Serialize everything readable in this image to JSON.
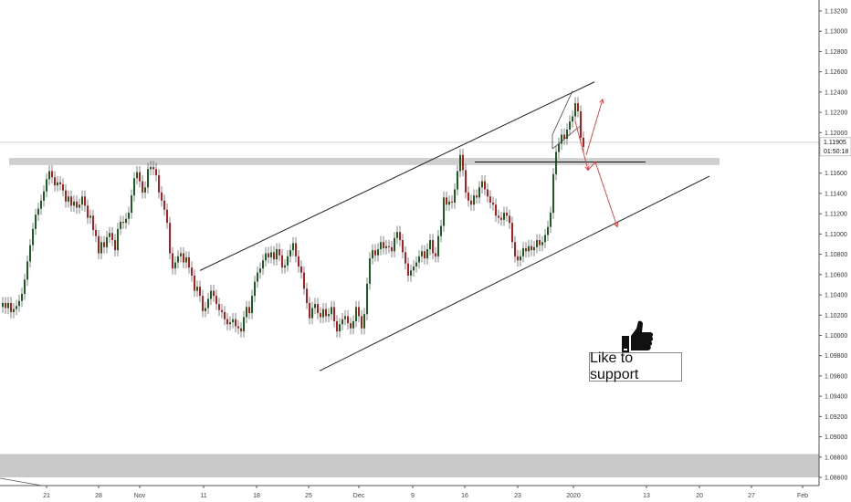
{
  "chart_data": {
    "type": "candlestick",
    "symbol_pair": "",
    "title": "",
    "xlabel": "",
    "ylabel": "",
    "ylim": [
      1.085,
      1.133
    ],
    "y_ticks": [
      "1.13200",
      "1.13000",
      "1.12800",
      "1.12600",
      "1.12400",
      "1.12200",
      "1.12000",
      "1.11800",
      "1.11600",
      "1.11400",
      "1.11200",
      "1.11000",
      "1.10800",
      "1.10600",
      "1.10400",
      "1.10200",
      "1.10000",
      "1.09800",
      "1.09600",
      "1.09400",
      "1.09200",
      "1.09000",
      "1.08800",
      "1.08600"
    ],
    "x_ticks": [
      "21",
      "28",
      "Nov",
      "11",
      "18",
      "25",
      "Dec",
      "9",
      "16",
      "23",
      "2020",
      "13",
      "20",
      "27",
      "Feb"
    ],
    "last_price": "1.11905",
    "countdown": "01:50:18",
    "colors": {
      "up": "#1b5e20",
      "down": "#b71c1c",
      "zone": "#cfcfcf",
      "trendline": "#222222",
      "projection": "#e53935"
    },
    "resistance_zone": {
      "y_top": 1.1175,
      "y_bottom": 1.1168
    },
    "bottom_zone": {
      "y_top": 1.0883,
      "y_bottom": 1.086
    },
    "channel_upper": {
      "x1": 219,
      "y1": 1.1064,
      "x2": 651,
      "y2": 1.125
    },
    "channel_lower": {
      "x1": 350,
      "y1": 1.0965,
      "x2": 777,
      "y2": 1.1157
    },
    "horizontal_line": {
      "x1": 520,
      "x2": 707,
      "y": 1.1171
    },
    "wedge_lines": [
      {
        "x1": 605,
        "y1": 1.1198,
        "x2": 627,
        "y2": 1.1241
      },
      {
        "x1": 605,
        "y1": 1.1184,
        "x2": 636,
        "y2": 1.1207
      }
    ],
    "projection_path": [
      {
        "x": 630,
        "y": 1.1211
      },
      {
        "x": 644,
        "y": 1.1163
      },
      {
        "x": 652,
        "y": 1.1171
      },
      {
        "x": 676,
        "y": 1.1107
      }
    ],
    "projection_up": {
      "x1": 642,
      "y1": 1.1178,
      "x2": 660,
      "y2": 1.1233
    },
    "candles": [
      [
        0,
        1.1032
      ],
      [
        3,
        1.1027
      ],
      [
        6,
        1.1032
      ],
      [
        9,
        1.1023
      ],
      [
        12,
        1.1026
      ],
      [
        15,
        1.1029
      ],
      [
        18,
        1.1034
      ],
      [
        21,
        1.1041
      ],
      [
        24,
        1.1055
      ],
      [
        27,
        1.1073
      ],
      [
        30,
        1.1089
      ],
      [
        33,
        1.1105
      ],
      [
        36,
        1.1119
      ],
      [
        39,
        1.1125
      ],
      [
        42,
        1.1133
      ],
      [
        45,
        1.1142
      ],
      [
        48,
        1.1154
      ],
      [
        51,
        1.1162
      ],
      [
        54,
        1.1156
      ],
      [
        57,
        1.1148
      ],
      [
        60,
        1.1151
      ],
      [
        63,
        1.1149
      ],
      [
        66,
        1.1143
      ],
      [
        69,
        1.1132
      ],
      [
        72,
        1.1137
      ],
      [
        75,
        1.1128
      ],
      [
        78,
        1.1132
      ],
      [
        81,
        1.1126
      ],
      [
        84,
        1.1129
      ],
      [
        87,
        1.1137
      ],
      [
        90,
        1.1128
      ],
      [
        93,
        1.1116
      ],
      [
        96,
        1.1118
      ],
      [
        99,
        1.1104
      ],
      [
        102,
        1.1098
      ],
      [
        105,
        1.1081
      ],
      [
        108,
        1.1092
      ],
      [
        111,
        1.1087
      ],
      [
        114,
        1.1097
      ],
      [
        117,
        1.1101
      ],
      [
        120,
        1.1094
      ],
      [
        123,
        1.1084
      ],
      [
        126,
        1.1105
      ],
      [
        129,
        1.1112
      ],
      [
        132,
        1.1111
      ],
      [
        135,
        1.1115
      ],
      [
        138,
        1.1121
      ],
      [
        141,
        1.1138
      ],
      [
        144,
        1.1155
      ],
      [
        147,
        1.1161
      ],
      [
        150,
        1.1152
      ],
      [
        153,
        1.1141
      ],
      [
        156,
        1.1146
      ],
      [
        159,
        1.1164
      ],
      [
        162,
        1.1166
      ],
      [
        165,
        1.1164
      ],
      [
        168,
        1.1158
      ],
      [
        171,
        1.1141
      ],
      [
        174,
        1.1133
      ],
      [
        177,
        1.1124
      ],
      [
        180,
        1.1111
      ],
      [
        183,
        1.1081
      ],
      [
        186,
        1.1066
      ],
      [
        189,
        1.1072
      ],
      [
        192,
        1.1078
      ],
      [
        195,
        1.1081
      ],
      [
        198,
        1.1072
      ],
      [
        201,
        1.1077
      ],
      [
        204,
        1.1067
      ],
      [
        207,
        1.1059
      ],
      [
        210,
        1.1044
      ],
      [
        213,
        1.1048
      ],
      [
        216,
        1.1039
      ],
      [
        219,
        1.1024
      ],
      [
        222,
        1.1027
      ],
      [
        225,
        1.1036
      ],
      [
        228,
        1.1044
      ],
      [
        231,
        1.1039
      ],
      [
        234,
        1.1031
      ],
      [
        237,
        1.1025
      ],
      [
        240,
        1.1023
      ],
      [
        243,
        1.1016
      ],
      [
        246,
        1.1011
      ],
      [
        249,
        1.1013
      ],
      [
        252,
        1.1016
      ],
      [
        255,
        1.1009
      ],
      [
        258,
        1.1007
      ],
      [
        261,
        1.1004
      ],
      [
        264,
        1.1018
      ],
      [
        267,
        1.1028
      ],
      [
        270,
        1.1022
      ],
      [
        273,
        1.1039
      ],
      [
        276,
        1.1053
      ],
      [
        279,
        1.1062
      ],
      [
        282,
        1.1066
      ],
      [
        285,
        1.1074
      ],
      [
        288,
        1.1081
      ],
      [
        291,
        1.1077
      ],
      [
        294,
        1.1082
      ],
      [
        297,
        1.1075
      ],
      [
        300,
        1.1085
      ],
      [
        303,
        1.1079
      ],
      [
        306,
        1.1067
      ],
      [
        309,
        1.1069
      ],
      [
        312,
        1.1078
      ],
      [
        315,
        1.1084
      ],
      [
        318,
        1.1091
      ],
      [
        321,
        1.1078
      ],
      [
        324,
        1.1068
      ],
      [
        327,
        1.1062
      ],
      [
        330,
        1.1046
      ],
      [
        333,
        1.1032
      ],
      [
        336,
        1.1017
      ],
      [
        339,
        1.1027
      ],
      [
        342,
        1.1031
      ],
      [
        345,
        1.1022
      ],
      [
        348,
        1.1018
      ],
      [
        351,
        1.1026
      ],
      [
        354,
        1.1019
      ],
      [
        357,
        1.1021
      ],
      [
        360,
        1.1028
      ],
      [
        363,
        1.1014
      ],
      [
        366,
        1.1004
      ],
      [
        369,
        1.1011
      ],
      [
        372,
        1.1016
      ],
      [
        375,
        1.1019
      ],
      [
        378,
        1.1012
      ],
      [
        381,
        1.1007
      ],
      [
        384,
        1.1014
      ],
      [
        387,
        1.1028
      ],
      [
        390,
        1.1019
      ],
      [
        393,
        1.1007
      ],
      [
        396,
        1.1021
      ],
      [
        399,
        1.1051
      ],
      [
        402,
        1.1076
      ],
      [
        405,
        1.1084
      ],
      [
        408,
        1.1079
      ],
      [
        411,
        1.1085
      ],
      [
        414,
        1.1092
      ],
      [
        417,
        1.1086
      ],
      [
        420,
        1.1088
      ],
      [
        423,
        1.1087
      ],
      [
        426,
        1.1083
      ],
      [
        429,
        1.1096
      ],
      [
        432,
        1.1102
      ],
      [
        435,
        1.1094
      ],
      [
        438,
        1.1082
      ],
      [
        441,
        1.1071
      ],
      [
        444,
        1.1059
      ],
      [
        447,
        1.1064
      ],
      [
        450,
        1.1068
      ],
      [
        453,
        1.1072
      ],
      [
        456,
        1.1078
      ],
      [
        459,
        1.1083
      ],
      [
        462,
        1.1076
      ],
      [
        465,
        1.1085
      ],
      [
        468,
        1.1094
      ],
      [
        471,
        1.1081
      ],
      [
        474,
        1.1078
      ],
      [
        477,
        1.1098
      ],
      [
        480,
        1.1108
      ],
      [
        483,
        1.1136
      ],
      [
        486,
        1.1129
      ],
      [
        489,
        1.1132
      ],
      [
        492,
        1.1131
      ],
      [
        495,
        1.1144
      ],
      [
        498,
        1.1162
      ],
      [
        501,
        1.1178
      ],
      [
        504,
        1.1163
      ],
      [
        507,
        1.1141
      ],
      [
        510,
        1.1133
      ],
      [
        513,
        1.1129
      ],
      [
        516,
        1.1138
      ],
      [
        519,
        1.1136
      ],
      [
        522,
        1.1146
      ],
      [
        525,
        1.1152
      ],
      [
        528,
        1.1144
      ],
      [
        531,
        1.1137
      ],
      [
        534,
        1.1131
      ],
      [
        537,
        1.1129
      ],
      [
        540,
        1.1118
      ],
      [
        543,
        1.1116
      ],
      [
        546,
        1.1114
      ],
      [
        549,
        1.1121
      ],
      [
        552,
        1.1118
      ],
      [
        555,
        1.1111
      ],
      [
        558,
        1.1092
      ],
      [
        561,
        1.1078
      ],
      [
        564,
        1.1074
      ],
      [
        567,
        1.1078
      ],
      [
        570,
        1.1086
      ],
      [
        573,
        1.1083
      ],
      [
        576,
        1.1088
      ],
      [
        579,
        1.1084
      ],
      [
        582,
        1.1087
      ],
      [
        585,
        1.1094
      ],
      [
        588,
        1.1089
      ],
      [
        591,
        1.1092
      ],
      [
        594,
        1.1099
      ],
      [
        597,
        1.1107
      ],
      [
        600,
        1.1121
      ],
      [
        603,
        1.1159
      ],
      [
        606,
        1.1181
      ],
      [
        609,
        1.1189
      ],
      [
        612,
        1.1198
      ],
      [
        615,
        1.1194
      ],
      [
        618,
        1.1203
      ],
      [
        621,
        1.1211
      ],
      [
        624,
        1.1216
      ],
      [
        627,
        1.1229
      ],
      [
        630,
        1.1221
      ],
      [
        633,
        1.1195
      ],
      [
        636,
        1.1186
      ]
    ]
  },
  "overlay": {
    "support_text": "Like to support",
    "thumb_icon": "thumbs-up-icon"
  }
}
